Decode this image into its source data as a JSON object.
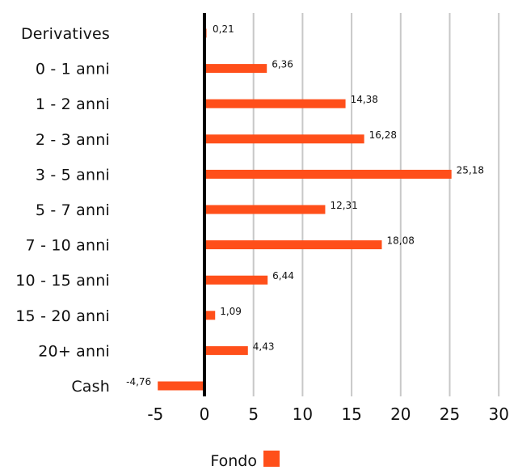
{
  "chart_data": {
    "type": "bar",
    "orientation": "horizontal",
    "categories": [
      "Derivatives",
      "0 - 1 anni",
      "1 - 2 anni",
      "2 - 3 anni",
      "3 - 5 anni",
      "5 - 7 anni",
      "7 - 10 anni",
      "10 - 15 anni",
      "15 - 20 anni",
      "20+ anni",
      "Cash"
    ],
    "series": [
      {
        "name": "Fondo",
        "values": [
          0.21,
          6.36,
          14.38,
          16.28,
          25.18,
          12.31,
          18.08,
          6.44,
          1.09,
          4.43,
          -4.76
        ],
        "value_labels": [
          "0,21",
          "6,36",
          "14,38",
          "16,28",
          "25,18",
          "12,31",
          "18,08",
          "6,44",
          "1,09",
          "4,43",
          "-4,76"
        ],
        "color": "#ff4f1a"
      }
    ],
    "xlim": [
      -5,
      30
    ],
    "xticks": [
      -5,
      0,
      5,
      10,
      15,
      20,
      25,
      30
    ],
    "xtick_labels": [
      "-5",
      "0",
      "5",
      "10",
      "15",
      "20",
      "25",
      "30"
    ],
    "grid": true,
    "grid_color": "#c8c8c8",
    "zero_line_color": "#000000",
    "legend_position": "bottom-center",
    "title": "",
    "xlabel": "",
    "ylabel": ""
  }
}
